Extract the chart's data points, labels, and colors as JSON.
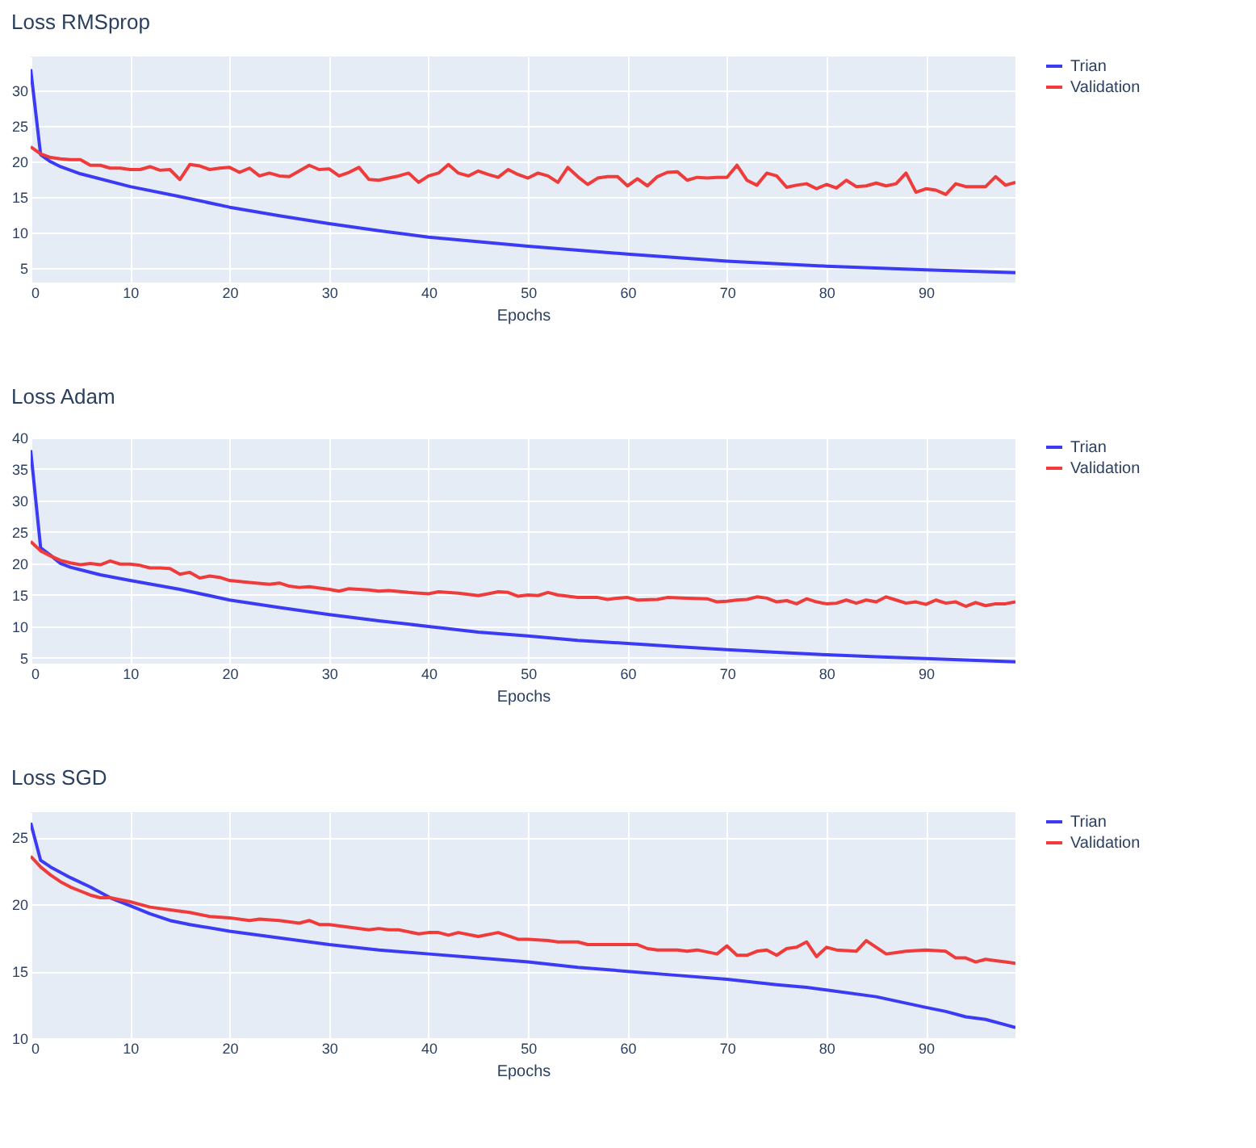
{
  "chart_data": [
    {
      "type": "line",
      "title": "Loss RMSprop",
      "xlabel": "Epochs",
      "xlim": [
        0,
        99
      ],
      "xticks": [
        0,
        10,
        20,
        30,
        40,
        50,
        60,
        70,
        80,
        90
      ],
      "ylim": [
        3,
        34.8
      ],
      "yticks": [
        5,
        10,
        15,
        20,
        25,
        30
      ],
      "grid": true,
      "legend": "top right",
      "series": [
        {
          "name": "Trian",
          "color": "#3b3bf5",
          "x": [
            0,
            1,
            2,
            3,
            5,
            10,
            15,
            20,
            25,
            30,
            35,
            40,
            50,
            60,
            70,
            80,
            90,
            99
          ],
          "values": [
            33,
            21,
            20,
            19.3,
            18.3,
            16.5,
            15.1,
            13.6,
            12.4,
            11.3,
            10.3,
            9.4,
            8.1,
            7.0,
            6.0,
            5.3,
            4.8,
            4.4
          ]
        },
        {
          "name": "Validation",
          "color": "#f03b3b",
          "x": [
            0,
            1,
            2,
            3,
            4,
            5,
            6,
            7,
            8,
            9,
            10,
            11,
            12,
            13,
            14,
            15,
            16,
            17,
            18,
            19,
            20,
            21,
            22,
            23,
            24,
            25,
            26,
            27,
            28,
            29,
            30,
            31,
            32,
            33,
            34,
            35,
            36,
            37,
            38,
            39,
            40,
            41,
            42,
            43,
            44,
            45,
            46,
            47,
            48,
            49,
            50,
            51,
            52,
            53,
            54,
            55,
            56,
            57,
            58,
            59,
            60,
            61,
            62,
            63,
            64,
            65,
            66,
            67,
            68,
            69,
            70,
            71,
            72,
            73,
            74,
            75,
            76,
            77,
            78,
            79,
            80,
            81,
            82,
            83,
            84,
            85,
            86,
            87,
            88,
            89,
            90,
            91,
            92,
            93,
            94,
            95,
            96,
            97,
            98,
            99
          ],
          "values": [
            22.1,
            21.1,
            20.6,
            20.4,
            20.3,
            20.3,
            19.5,
            19.5,
            19.1,
            19.1,
            18.9,
            18.9,
            19.3,
            18.8,
            18.9,
            17.5,
            19.6,
            19.4,
            18.9,
            19.1,
            19.2,
            18.5,
            19.1,
            18.0,
            18.4,
            18.0,
            17.9,
            18.7,
            19.5,
            18.9,
            19.0,
            18.0,
            18.5,
            19.2,
            17.5,
            17.4,
            17.7,
            18.0,
            18.4,
            17.1,
            18.0,
            18.4,
            19.6,
            18.4,
            18.0,
            18.7,
            18.2,
            17.8,
            18.9,
            18.2,
            17.7,
            18.4,
            18.0,
            17.1,
            19.2,
            17.9,
            16.8,
            17.7,
            17.9,
            17.9,
            16.6,
            17.6,
            16.6,
            17.9,
            18.5,
            18.6,
            17.4,
            17.8,
            17.7,
            17.8,
            17.8,
            19.5,
            17.4,
            16.7,
            18.4,
            18.0,
            16.4,
            16.7,
            16.9,
            16.2,
            16.8,
            16.3,
            17.4,
            16.5,
            16.6,
            17.0,
            16.6,
            16.9,
            18.4,
            15.7,
            16.2,
            16.0,
            15.4,
            16.9,
            16.5,
            16.5,
            16.5,
            17.9,
            16.7,
            17.1
          ]
        }
      ]
    },
    {
      "type": "line",
      "title": "Loss Adam",
      "xlabel": "Epochs",
      "xlim": [
        0,
        99
      ],
      "xticks": [
        0,
        10,
        20,
        30,
        40,
        50,
        60,
        70,
        80,
        90
      ],
      "ylim": [
        4.1,
        40
      ],
      "yticks": [
        5,
        10,
        15,
        20,
        25,
        30,
        35,
        40
      ],
      "grid": true,
      "legend": "top right",
      "series": [
        {
          "name": "Trian",
          "color": "#3b3bf5",
          "x": [
            0,
            1,
            2,
            3,
            4,
            5,
            7,
            10,
            15,
            20,
            25,
            30,
            35,
            40,
            45,
            50,
            55,
            60,
            65,
            70,
            75,
            80,
            85,
            90,
            95,
            99
          ],
          "values": [
            38,
            22.5,
            21.3,
            20,
            19.4,
            19,
            18.2,
            17.3,
            15.9,
            14.2,
            13.0,
            11.9,
            10.9,
            10.0,
            9.1,
            8.5,
            7.8,
            7.3,
            6.8,
            6.3,
            5.9,
            5.5,
            5.2,
            4.9,
            4.6,
            4.4
          ]
        },
        {
          "name": "Validation",
          "color": "#f03b3b",
          "x": [
            0,
            1,
            2,
            3,
            4,
            5,
            6,
            7,
            8,
            9,
            10,
            11,
            12,
            13,
            14,
            15,
            16,
            17,
            18,
            19,
            20,
            22,
            24,
            25,
            26,
            27,
            28,
            30,
            31,
            32,
            34,
            35,
            36,
            38,
            40,
            41,
            43,
            45,
            46,
            47,
            48,
            49,
            50,
            51,
            52,
            53,
            55,
            57,
            58,
            59,
            60,
            61,
            63,
            64,
            66,
            68,
            69,
            70,
            71,
            72,
            73,
            74,
            75,
            76,
            77,
            78,
            79,
            80,
            81,
            82,
            83,
            84,
            85,
            86,
            87,
            88,
            89,
            90,
            91,
            92,
            93,
            94,
            95,
            96,
            97,
            98,
            99
          ],
          "values": [
            23.5,
            22,
            21.2,
            20.5,
            20.1,
            19.8,
            20,
            19.8,
            20.4,
            19.9,
            19.9,
            19.7,
            19.3,
            19.3,
            19.2,
            18.3,
            18.6,
            17.7,
            18,
            17.8,
            17.3,
            17.0,
            16.7,
            16.9,
            16.4,
            16.2,
            16.3,
            15.9,
            15.6,
            16.0,
            15.8,
            15.6,
            15.7,
            15.4,
            15.2,
            15.5,
            15.3,
            14.9,
            15.2,
            15.5,
            15.4,
            14.8,
            15,
            14.9,
            15.4,
            15.0,
            14.6,
            14.6,
            14.3,
            14.5,
            14.6,
            14.2,
            14.3,
            14.6,
            14.5,
            14.4,
            13.9,
            14,
            14.2,
            14.3,
            14.7,
            14.5,
            13.9,
            14.1,
            13.6,
            14.4,
            13.9,
            13.6,
            13.7,
            14.2,
            13.7,
            14.2,
            13.9,
            14.7,
            14.2,
            13.7,
            13.9,
            13.5,
            14.2,
            13.7,
            13.9,
            13.2,
            13.8,
            13.3,
            13.6,
            13.6,
            13.9
          ]
        }
      ]
    },
    {
      "type": "line",
      "title": "Loss SGD",
      "xlabel": "Epochs",
      "xlim": [
        0,
        99
      ],
      "xticks": [
        0,
        10,
        20,
        30,
        40,
        50,
        60,
        70,
        80,
        90
      ],
      "ylim": [
        10,
        26.9
      ],
      "yticks": [
        10,
        15,
        20,
        25
      ],
      "grid": true,
      "legend": "top right",
      "series": [
        {
          "name": "Trian",
          "color": "#3b3bf5",
          "x": [
            0,
            1,
            2,
            4,
            6,
            8,
            10,
            12,
            14,
            16,
            20,
            25,
            30,
            35,
            40,
            45,
            50,
            55,
            60,
            65,
            70,
            75,
            78,
            80,
            85,
            90,
            92,
            94,
            96,
            98,
            99
          ],
          "values": [
            26.1,
            23.3,
            22.8,
            22,
            21.3,
            20.5,
            19.9,
            19.3,
            18.8,
            18.5,
            18.0,
            17.5,
            17.0,
            16.6,
            16.3,
            16.0,
            15.7,
            15.3,
            15.0,
            14.7,
            14.4,
            14.0,
            13.8,
            13.6,
            13.1,
            12.3,
            12.0,
            11.6,
            11.4,
            11.0,
            10.8
          ]
        },
        {
          "name": "Validation",
          "color": "#f03b3b",
          "x": [
            0,
            1,
            2,
            3,
            4,
            5,
            6,
            7,
            8,
            10,
            12,
            14,
            16,
            18,
            20,
            22,
            23,
            25,
            27,
            28,
            29,
            30,
            32,
            34,
            35,
            36,
            37,
            39,
            40,
            41,
            42,
            43,
            45,
            47,
            49,
            50,
            52,
            53,
            54,
            55,
            56,
            60,
            61,
            62,
            63,
            65,
            66,
            67,
            69,
            70,
            71,
            72,
            73,
            74,
            75,
            76,
            77,
            78,
            79,
            80,
            81,
            83,
            84,
            85,
            86,
            87,
            88,
            90,
            92,
            93,
            94,
            95,
            96,
            97,
            98,
            99
          ],
          "values": [
            23.6,
            22.8,
            22.2,
            21.7,
            21.3,
            21.0,
            20.7,
            20.5,
            20.5,
            20.2,
            19.8,
            19.6,
            19.4,
            19.1,
            19.0,
            18.8,
            18.9,
            18.8,
            18.6,
            18.8,
            18.5,
            18.5,
            18.3,
            18.1,
            18.2,
            18.1,
            18.1,
            17.8,
            17.9,
            17.9,
            17.7,
            17.9,
            17.6,
            17.9,
            17.4,
            17.4,
            17.3,
            17.2,
            17.2,
            17.2,
            17.0,
            17.0,
            17.0,
            16.7,
            16.6,
            16.6,
            16.5,
            16.6,
            16.3,
            16.9,
            16.2,
            16.2,
            16.5,
            16.6,
            16.2,
            16.7,
            16.8,
            17.2,
            16.1,
            16.8,
            16.6,
            16.5,
            17.3,
            16.8,
            16.3,
            16.4,
            16.5,
            16.6,
            16.5,
            16.0,
            16.0,
            15.7,
            15.9,
            15.8,
            15.7,
            15.6
          ]
        }
      ]
    }
  ]
}
